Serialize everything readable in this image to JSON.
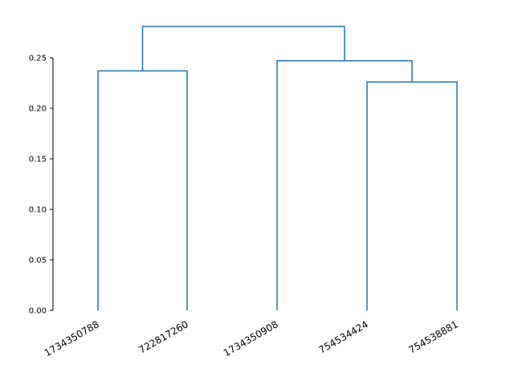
{
  "chart_data": {
    "type": "dendrogram",
    "leaves": [
      "1734350788",
      "722817260",
      "1734350908",
      "754534424",
      "754538881"
    ],
    "merges": [
      {
        "left": "754534424",
        "right": "754538881",
        "height": 0.226
      },
      {
        "left": "1734350908",
        "right": "cluster(754534424, 754538881)",
        "height": 0.247
      },
      {
        "left": "1734350788",
        "right": "722817260",
        "height": 0.237
      },
      {
        "left": "cluster(1734350788, 722817260)",
        "right": "cluster(1734350908, 754534424, 754538881)",
        "height": 0.281
      }
    ],
    "yticks": [
      "0.00",
      "0.05",
      "0.10",
      "0.15",
      "0.20",
      "0.25"
    ],
    "ytick_values": [
      0.0,
      0.05,
      0.1,
      0.15,
      0.2,
      0.25
    ],
    "ylim": [
      0,
      0.25
    ],
    "title": "",
    "xlabel": "",
    "ylabel": "",
    "grid": false,
    "line_color": "#1f77b4"
  }
}
